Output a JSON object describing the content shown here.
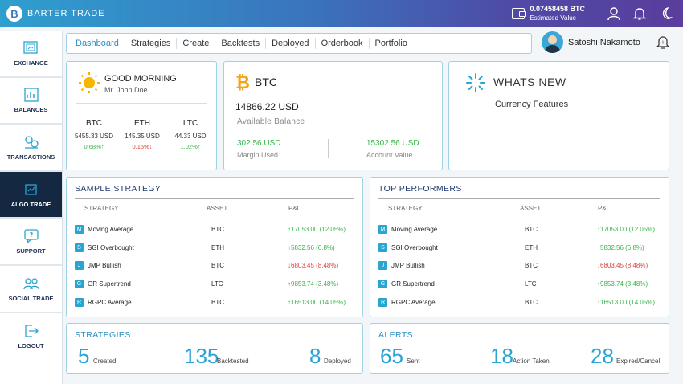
{
  "header": {
    "brand": "BARTER TRADE",
    "btc_value": "0.07458458 BTC",
    "btc_label": "Estimated Value"
  },
  "sidebar": {
    "items": [
      {
        "label": "EXCHANGE",
        "icon": "exchange-icon"
      },
      {
        "label": "BALANCES",
        "icon": "balances-icon"
      },
      {
        "label": "TRANSACTIONS",
        "icon": "transactions-icon"
      },
      {
        "label": "ALGO TRADE",
        "icon": "algo-trade-icon"
      },
      {
        "label": "SUPPORT",
        "icon": "support-icon"
      },
      {
        "label": "SOCIAL TRADE",
        "icon": "social-trade-icon"
      },
      {
        "label": "LOGOUT",
        "icon": "logout-icon"
      }
    ]
  },
  "nav": {
    "tabs": [
      "Dashboard",
      "Strategies",
      "Create",
      "Backtests",
      "Deployed",
      "Orderbook",
      "Portfolio"
    ]
  },
  "user": {
    "name": "Satoshi Nakamoto"
  },
  "greeting": {
    "title": "GOOD MORNING",
    "name": "Mr. John Doe",
    "coins": [
      {
        "name": "BTC",
        "price": "5455.33 USD",
        "change": "0.68%↑",
        "dir": "up"
      },
      {
        "name": "ETH",
        "price": "145.35 USD",
        "change": "0.15%↓",
        "dir": "down"
      },
      {
        "name": "LTC",
        "price": "44.33 USD",
        "change": "1.02%↑",
        "dir": "up"
      }
    ]
  },
  "btc_card": {
    "title": "BTC",
    "balance": "14866.22 USD",
    "balance_label": "Available  Balance",
    "margin_value": "302.56 USD",
    "margin_label": "Margin Used",
    "account_value": "15302.56 USD",
    "account_label": "Account Value"
  },
  "whats_new": {
    "title": "WHATS NEW",
    "subtitle": "Currency Features"
  },
  "sample_strategy": {
    "title": "SAMPLE STRATEGY",
    "headers": [
      "STRATEGY",
      "ASSET",
      "P&L"
    ],
    "rows": [
      {
        "badge": "M",
        "name": "Moving Average",
        "asset": "BTC",
        "pl": "↑17053.00 (12.05%)",
        "dir": "up"
      },
      {
        "badge": "S",
        "name": "SGI Overbought",
        "asset": "ETH",
        "pl": "↑5832.56 (6.8%)",
        "dir": "up"
      },
      {
        "badge": "J",
        "name": "JMP Bullish",
        "asset": "BTC",
        "pl": "↓6803.45 (8.48%)",
        "dir": "down"
      },
      {
        "badge": "G",
        "name": "GR Supertrend",
        "asset": "LTC",
        "pl": "↑9853.74 (3.48%)",
        "dir": "up"
      },
      {
        "badge": "R",
        "name": "RGPC Average",
        "asset": "BTC",
        "pl": "↑16513.00 (14.05%)",
        "dir": "up"
      }
    ]
  },
  "top_performers": {
    "title": "TOP PERFORMERS",
    "headers": [
      "STRATEGY",
      "ASSET",
      "P&L"
    ],
    "rows": [
      {
        "badge": "M",
        "name": "Moving Average",
        "asset": "BTC",
        "pl": "↑17053.00 (12.05%)",
        "dir": "up"
      },
      {
        "badge": "S",
        "name": "SGI Overbought",
        "asset": "ETH",
        "pl": "↑5832.56 (6.8%)",
        "dir": "up"
      },
      {
        "badge": "J",
        "name": "JMP Bullish",
        "asset": "BTC",
        "pl": "↓6803.45 (8.48%)",
        "dir": "down"
      },
      {
        "badge": "G",
        "name": "GR Supertrend",
        "asset": "LTC",
        "pl": "↑9853.74 (3.48%)",
        "dir": "up"
      },
      {
        "badge": "R",
        "name": "RGPC Average",
        "asset": "BTC",
        "pl": "↑16513.00 (14.05%)",
        "dir": "up"
      }
    ]
  },
  "strategies": {
    "title": "STRATEGIES",
    "stats": [
      {
        "value": "5",
        "label": "Created"
      },
      {
        "value": "135",
        "label": "Backtested"
      },
      {
        "value": "8",
        "label": "Deployed"
      }
    ]
  },
  "alerts": {
    "title": "ALERTS",
    "stats": [
      {
        "value": "65",
        "label": "Sent"
      },
      {
        "value": "18",
        "label": "Action Taken"
      },
      {
        "value": "28",
        "label": "Expired/Cancel"
      }
    ]
  },
  "colors": {
    "accent": "#2aa5d2",
    "up": "#37b34a",
    "down": "#e0403a",
    "sidebar_active": "#142842"
  }
}
